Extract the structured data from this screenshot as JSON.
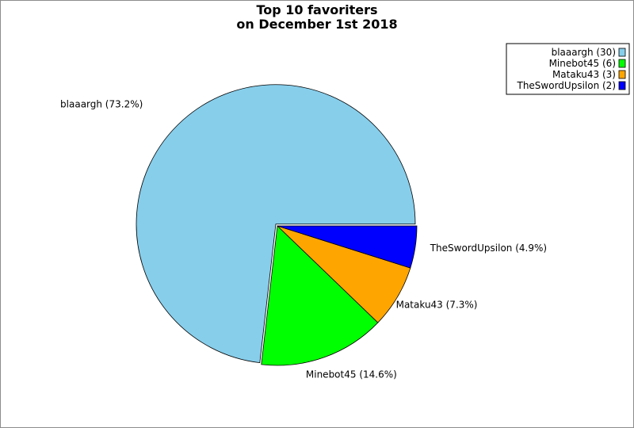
{
  "chart_data": {
    "type": "pie",
    "title": [
      "Top 10 favoriters",
      "on December 1st 2018"
    ],
    "legend_position": "top-right",
    "slices": [
      {
        "name": "blaaargh",
        "value": 30,
        "percent_label": "blaaargh (73.2%)",
        "legend_label": "blaaargh (30)",
        "color": "#87ceeb"
      },
      {
        "name": "Minebot45",
        "value": 6,
        "percent_label": "Minebot45 (14.6%)",
        "legend_label": "Minebot45 (6)",
        "color": "#00ff00"
      },
      {
        "name": "Mataku43",
        "value": 3,
        "percent_label": "Mataku43 (7.3%)",
        "legend_label": "Mataku43 (3)",
        "color": "#ffa500"
      },
      {
        "name": "TheSwordUpsilon",
        "value": 2,
        "percent_label": "TheSwordUpsilon (4.9%)",
        "legend_label": "TheSwordUpsilon (2)",
        "color": "#0000ff"
      }
    ]
  }
}
